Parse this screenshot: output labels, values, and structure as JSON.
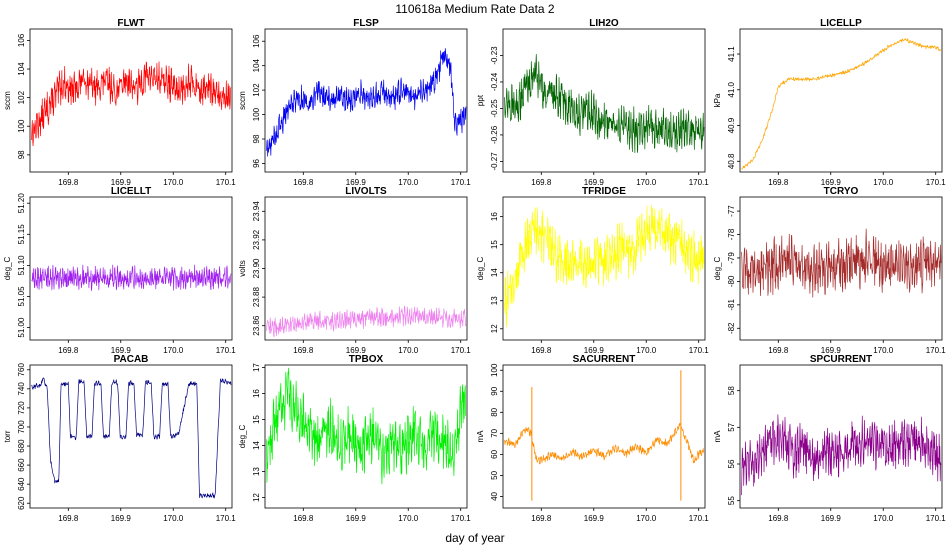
{
  "figure": {
    "title": "110618a   Medium Rate Data 2",
    "xlabel": "day of year"
  },
  "chart_data": [
    {
      "type": "line",
      "title": "FLWT",
      "ylabel": "sccm",
      "color": "#ff0000",
      "xlim": [
        169.727,
        170.112
      ],
      "ylim": [
        96.8,
        106.8
      ],
      "xticks": [
        169.8,
        169.9,
        170.0,
        170.1
      ],
      "yticks": [
        98,
        100,
        102,
        104,
        106
      ],
      "yfmt": 0,
      "x": [
        169.73,
        169.75,
        169.77,
        169.79,
        169.81,
        169.83,
        169.85,
        169.87,
        169.89,
        169.91,
        169.93,
        169.95,
        169.97,
        169.99,
        170.01,
        170.03,
        170.05,
        170.07,
        170.09,
        170.11
      ],
      "y": [
        99.5,
        100.6,
        101.8,
        103.0,
        102.5,
        103.4,
        102.6,
        103.2,
        102.4,
        103.3,
        102.6,
        103.6,
        103.3,
        103.0,
        102.5,
        103.2,
        102.6,
        102.6,
        102.0,
        102.0
      ],
      "noise": 1.8
    },
    {
      "type": "line",
      "title": "FLSP",
      "ylabel": "sccm",
      "color": "#0000ee",
      "xlim": [
        169.727,
        170.112
      ],
      "ylim": [
        95.3,
        107.0
      ],
      "xticks": [
        169.8,
        169.9,
        170.0,
        170.1
      ],
      "yticks": [
        96,
        98,
        100,
        102,
        104,
        106
      ],
      "yfmt": 0,
      "x": [
        169.73,
        169.75,
        169.77,
        169.79,
        169.81,
        169.83,
        169.85,
        169.87,
        169.89,
        169.91,
        169.93,
        169.95,
        169.97,
        169.99,
        170.01,
        170.03,
        170.05,
        170.07,
        170.08,
        170.09,
        170.11
      ],
      "y": [
        97.0,
        98.5,
        100.5,
        101.5,
        101.0,
        101.8,
        101.2,
        101.6,
        101.0,
        101.8,
        101.2,
        101.9,
        101.3,
        102.0,
        101.4,
        102.0,
        102.8,
        105.0,
        104.0,
        99.0,
        100.0
      ],
      "noise": 1.6
    },
    {
      "type": "line",
      "title": "LIH2O",
      "ylabel": "ppt",
      "color": "#006400",
      "xlim": [
        169.727,
        170.112
      ],
      "ylim": [
        -0.274,
        -0.22
      ],
      "xticks": [
        169.8,
        169.9,
        170.0,
        170.1
      ],
      "yticks": [
        -0.27,
        -0.26,
        -0.25,
        -0.24,
        -0.23
      ],
      "yfmt": 2,
      "x": [
        169.73,
        169.75,
        169.77,
        169.79,
        169.81,
        169.83,
        169.85,
        169.87,
        169.89,
        169.91,
        169.93,
        169.95,
        169.97,
        169.99,
        170.01,
        170.03,
        170.05,
        170.07,
        170.09,
        170.11
      ],
      "y": [
        -0.247,
        -0.25,
        -0.242,
        -0.236,
        -0.245,
        -0.246,
        -0.249,
        -0.252,
        -0.251,
        -0.254,
        -0.255,
        -0.256,
        -0.258,
        -0.258,
        -0.257,
        -0.258,
        -0.259,
        -0.258,
        -0.257,
        -0.26
      ],
      "noise": 0.012
    },
    {
      "type": "line",
      "title": "LICELLP",
      "ylabel": "kPa",
      "color": "#ffa500",
      "xlim": [
        169.727,
        170.112
      ],
      "ylim": [
        40.77,
        41.17
      ],
      "xticks": [
        169.8,
        169.9,
        170.0,
        170.1
      ],
      "yticks": [
        40.8,
        40.9,
        41.0,
        41.1
      ],
      "yfmt": 1,
      "x": [
        169.73,
        169.75,
        169.77,
        169.79,
        169.8,
        169.82,
        169.84,
        169.87,
        169.9,
        169.93,
        169.96,
        169.99,
        170.02,
        170.04,
        170.06,
        170.08,
        170.1,
        170.11
      ],
      "y": [
        40.78,
        40.8,
        40.86,
        40.95,
        41.01,
        41.03,
        41.03,
        41.03,
        41.04,
        41.05,
        41.07,
        41.1,
        41.13,
        41.14,
        41.13,
        41.12,
        41.12,
        41.11
      ],
      "noise": 0.008
    },
    {
      "type": "line",
      "title": "LICELLT",
      "ylabel": "deg_C",
      "color": "#a020f0",
      "xlim": [
        169.727,
        170.112
      ],
      "ylim": [
        50.98,
        51.21
      ],
      "xticks": [
        169.8,
        169.9,
        170.0,
        170.1
      ],
      "yticks": [
        51.0,
        51.05,
        51.1,
        51.15,
        51.2
      ],
      "yfmt": 2,
      "x": [
        169.73,
        169.79,
        169.85,
        169.91,
        169.97,
        170.03,
        170.08,
        170.11
      ],
      "y": [
        51.08,
        51.08,
        51.08,
        51.08,
        51.08,
        51.08,
        51.08,
        51.08
      ],
      "noise": 0.028
    },
    {
      "type": "line",
      "title": "LIVOLTS",
      "ylabel": "volts",
      "color": "#ee82ee",
      "xlim": [
        169.727,
        170.112
      ],
      "ylim": [
        23.85,
        23.95
      ],
      "xticks": [
        169.8,
        169.9,
        170.0,
        170.1
      ],
      "yticks": [
        23.86,
        23.88,
        23.9,
        23.92,
        23.94
      ],
      "yfmt": 2,
      "x": [
        169.73,
        169.76,
        169.79,
        169.82,
        169.85,
        169.88,
        169.91,
        169.94,
        169.97,
        170.0,
        170.03,
        170.06,
        170.09,
        170.11
      ],
      "y": [
        23.858,
        23.86,
        23.862,
        23.863,
        23.863,
        23.864,
        23.865,
        23.866,
        23.866,
        23.867,
        23.866,
        23.866,
        23.865,
        23.866
      ],
      "noise": 0.01
    },
    {
      "type": "line",
      "title": "TFRIDGE",
      "ylabel": "deg_C",
      "color": "#ffff00",
      "xlim": [
        169.727,
        170.112
      ],
      "ylim": [
        11.6,
        16.7
      ],
      "xticks": [
        169.8,
        169.9,
        170.0,
        170.1
      ],
      "yticks": [
        12,
        13,
        14,
        15,
        16
      ],
      "yfmt": 0,
      "x": [
        169.73,
        169.75,
        169.77,
        169.79,
        169.81,
        169.83,
        169.85,
        169.87,
        169.89,
        169.91,
        169.93,
        169.95,
        169.97,
        169.99,
        170.01,
        170.03,
        170.05,
        170.07,
        170.09,
        170.11
      ],
      "y": [
        12.8,
        13.8,
        15.0,
        15.6,
        15.2,
        14.6,
        14.3,
        14.5,
        14.1,
        14.6,
        14.3,
        15.0,
        14.7,
        15.2,
        15.6,
        15.4,
        15.2,
        15.0,
        14.5,
        14.6
      ],
      "noise": 1.4
    },
    {
      "type": "line",
      "title": "TCRYO",
      "ylabel": "deg_C",
      "color": "#a52a2a",
      "xlim": [
        169.727,
        170.112
      ],
      "ylim": [
        -82.5,
        -76.4
      ],
      "xticks": [
        169.8,
        169.9,
        170.0,
        170.1
      ],
      "yticks": [
        -82,
        -81,
        -80,
        -79,
        -78,
        -77
      ],
      "yfmt": 0,
      "x": [
        169.73,
        169.76,
        169.79,
        169.82,
        169.85,
        169.88,
        169.91,
        169.94,
        169.97,
        170.0,
        170.03,
        170.06,
        170.09,
        170.11
      ],
      "y": [
        -79.4,
        -79.6,
        -79.3,
        -79.0,
        -79.4,
        -79.5,
        -79.2,
        -79.3,
        -79.0,
        -79.4,
        -79.3,
        -79.2,
        -79.4,
        -79.0
      ],
      "noise": 1.7
    },
    {
      "type": "line",
      "title": "PACAB",
      "ylabel": "torr",
      "color": "#000080",
      "xlim": [
        169.727,
        170.112
      ],
      "ylim": [
        615,
        765
      ],
      "xticks": [
        169.8,
        169.9,
        170.0,
        170.1
      ],
      "yticks": [
        620,
        640,
        660,
        680,
        700,
        720,
        740,
        760
      ],
      "yfmt": 0,
      "x": [
        169.73,
        169.748,
        169.752,
        169.76,
        169.766,
        169.774,
        169.782,
        169.786,
        169.8,
        169.804,
        169.815,
        169.82,
        169.83,
        169.835,
        169.845,
        169.85,
        169.862,
        169.867,
        169.878,
        169.883,
        169.894,
        169.899,
        169.91,
        169.915,
        169.925,
        169.93,
        169.942,
        169.947,
        169.958,
        169.963,
        169.974,
        169.979,
        169.99,
        169.995,
        170.01,
        170.03,
        170.045,
        170.05,
        170.08,
        170.09,
        170.11
      ],
      "y": [
        742,
        744,
        752,
        740,
        665,
        643,
        643,
        745,
        745,
        690,
        688,
        748,
        748,
        690,
        690,
        746,
        746,
        690,
        690,
        747,
        747,
        690,
        690,
        746,
        746,
        692,
        692,
        747,
        747,
        690,
        690,
        745,
        745,
        690,
        692,
        746,
        745,
        628,
        628,
        750,
        745
      ],
      "noise": 4
    },
    {
      "type": "line",
      "title": "TPBOX",
      "ylabel": "deg_C",
      "color": "#00ee00",
      "xlim": [
        169.727,
        170.112
      ],
      "ylim": [
        11.6,
        17.1
      ],
      "xticks": [
        169.8,
        169.9,
        170.0,
        170.1
      ],
      "yticks": [
        12,
        13,
        14,
        15,
        16,
        17
      ],
      "yfmt": 0,
      "x": [
        169.73,
        169.75,
        169.77,
        169.79,
        169.81,
        169.83,
        169.85,
        169.87,
        169.89,
        169.91,
        169.93,
        169.95,
        169.97,
        169.99,
        170.01,
        170.03,
        170.05,
        170.07,
        170.09,
        170.1,
        170.11
      ],
      "y": [
        13.5,
        15.2,
        16.0,
        15.2,
        14.6,
        14.2,
        14.8,
        14.0,
        14.5,
        13.8,
        14.4,
        13.6,
        14.2,
        13.8,
        14.6,
        14.0,
        14.6,
        14.0,
        13.6,
        15.5,
        15.8
      ],
      "noise": 1.6
    },
    {
      "type": "line",
      "title": "SACURRENT",
      "ylabel": "mA",
      "color": "#ff8c00",
      "xlim": [
        169.727,
        170.112
      ],
      "ylim": [
        34.5,
        102.5
      ],
      "xticks": [
        169.8,
        169.9,
        170.0,
        170.1
      ],
      "yticks": [
        40,
        50,
        60,
        70,
        80,
        90,
        100
      ],
      "yfmt": 0,
      "x": [
        169.73,
        169.75,
        169.77,
        169.78,
        169.79,
        169.8,
        169.82,
        169.84,
        169.86,
        169.88,
        169.9,
        169.92,
        169.94,
        169.96,
        169.98,
        170.0,
        170.02,
        170.04,
        170.06,
        170.065,
        170.07,
        170.08,
        170.09,
        170.1,
        170.11
      ],
      "y": [
        66,
        65,
        72,
        70,
        58,
        57,
        60,
        58,
        61,
        59,
        62,
        59,
        63,
        60,
        64,
        61,
        67,
        65,
        72,
        75,
        70,
        65,
        57,
        60,
        62
      ],
      "noise": 3,
      "spikes": [
        {
          "x": 169.782,
          "lo": 38,
          "hi": 92
        },
        {
          "x": 170.066,
          "lo": 38,
          "hi": 100
        }
      ]
    },
    {
      "type": "line",
      "title": "SPCURRENT",
      "ylabel": "mA",
      "color": "#8b008b",
      "xlim": [
        169.727,
        170.112
      ],
      "ylim": [
        54.8,
        58.7
      ],
      "xticks": [
        169.8,
        169.9,
        170.0,
        170.1
      ],
      "yticks": [
        55,
        56,
        57,
        58
      ],
      "yfmt": 0,
      "x": [
        169.73,
        169.75,
        169.77,
        169.79,
        169.81,
        169.83,
        169.85,
        169.87,
        169.89,
        169.91,
        169.93,
        169.95,
        169.97,
        169.99,
        170.01,
        170.03,
        170.05,
        170.07,
        170.09,
        170.11
      ],
      "y": [
        55.9,
        56.0,
        56.4,
        56.7,
        56.6,
        56.3,
        56.5,
        56.1,
        56.4,
        56.2,
        56.5,
        56.5,
        56.7,
        56.5,
        56.4,
        56.6,
        56.5,
        56.7,
        56.4,
        56.1
      ],
      "noise": 1.0
    }
  ]
}
